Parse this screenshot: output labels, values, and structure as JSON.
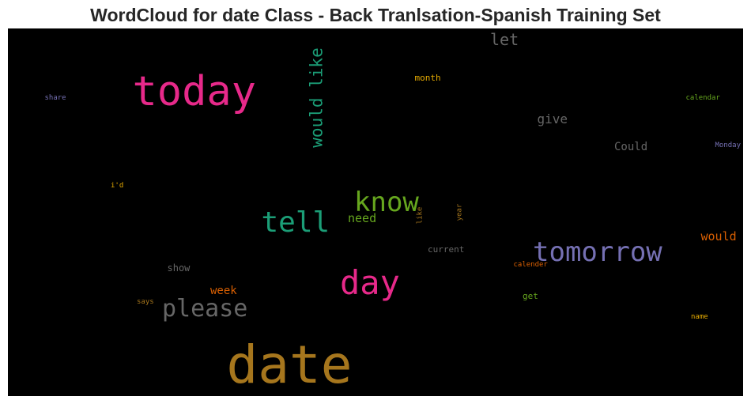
{
  "chart_data": {
    "type": "wordcloud",
    "title": "WordCloud for date Class - Back Tranlsation-Spanish Training Set",
    "background": "#000000",
    "words": [
      {
        "text": "date",
        "color": "#a6761d",
        "orientation": "horizontal"
      },
      {
        "text": "today",
        "color": "#e7298a",
        "orientation": "horizontal"
      },
      {
        "text": "day",
        "color": "#e7298a",
        "orientation": "horizontal"
      },
      {
        "text": "tomorrow",
        "color": "#7570b3",
        "orientation": "horizontal"
      },
      {
        "text": "tell",
        "color": "#1b9e77",
        "orientation": "horizontal"
      },
      {
        "text": "know",
        "color": "#66a61e",
        "orientation": "horizontal"
      },
      {
        "text": "please",
        "color": "#666666",
        "orientation": "horizontal"
      },
      {
        "text": "would like",
        "color": "#1b9e77",
        "orientation": "vertical"
      },
      {
        "text": "let",
        "color": "#666666",
        "orientation": "horizontal"
      },
      {
        "text": "give",
        "color": "#666666",
        "orientation": "horizontal"
      },
      {
        "text": "would",
        "color": "#d95f02",
        "orientation": "horizontal"
      },
      {
        "text": "Could",
        "color": "#666666",
        "orientation": "horizontal"
      },
      {
        "text": "need",
        "color": "#66a61e",
        "orientation": "horizontal"
      },
      {
        "text": "week",
        "color": "#d95f02",
        "orientation": "horizontal"
      },
      {
        "text": "show",
        "color": "#666666",
        "orientation": "horizontal"
      },
      {
        "text": "current",
        "color": "#666666",
        "orientation": "horizontal"
      },
      {
        "text": "month",
        "color": "#e6ab02",
        "orientation": "horizontal"
      },
      {
        "text": "get",
        "color": "#66a61e",
        "orientation": "horizontal"
      },
      {
        "text": "share",
        "color": "#7570b3",
        "orientation": "horizontal"
      },
      {
        "text": "calendar",
        "color": "#66a61e",
        "orientation": "horizontal"
      },
      {
        "text": "Monday",
        "color": "#7570b3",
        "orientation": "horizontal"
      },
      {
        "text": "i'd",
        "color": "#e6ab02",
        "orientation": "horizontal"
      },
      {
        "text": "like",
        "color": "#a6761d",
        "orientation": "vertical"
      },
      {
        "text": "year",
        "color": "#a6761d",
        "orientation": "vertical"
      },
      {
        "text": "calender",
        "color": "#d95f02",
        "orientation": "horizontal"
      },
      {
        "text": "says",
        "color": "#a6761d",
        "orientation": "horizontal"
      },
      {
        "text": "name",
        "color": "#e6ab02",
        "orientation": "horizontal"
      }
    ]
  }
}
